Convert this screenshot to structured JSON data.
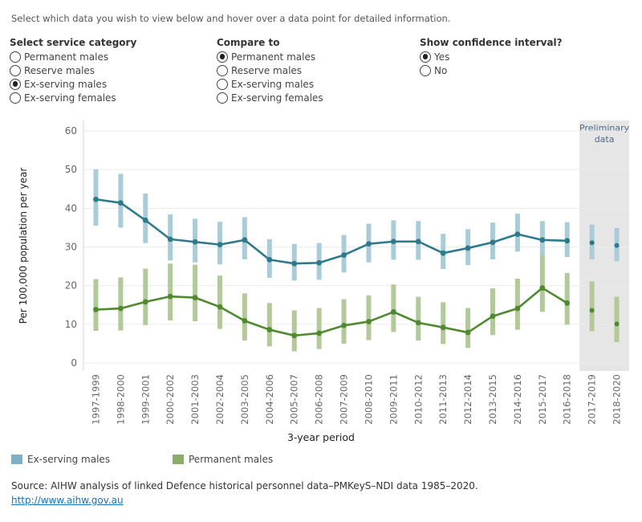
{
  "instruction": "Select which data you wish to view below and hover over a data point for detailed information.",
  "controls": {
    "service_category": {
      "title": "Select service category",
      "options": [
        "Permanent males",
        "Reserve males",
        "Ex-serving males",
        "Ex-serving females"
      ],
      "selected": "Ex-serving males"
    },
    "compare_to": {
      "title": "Compare to",
      "options": [
        "Permanent males",
        "Reserve males",
        "Ex-serving males",
        "Ex-serving females"
      ],
      "selected": "Permanent males"
    },
    "confidence_interval": {
      "title": "Show confidence interval?",
      "options": [
        "Yes",
        "No"
      ],
      "selected": "Yes"
    }
  },
  "chart_data": {
    "type": "line",
    "xlabel": "3-year period",
    "ylabel": "Per 100,000 population per year",
    "ylim": [
      0,
      60
    ],
    "yticks": [
      0,
      10,
      20,
      30,
      40,
      50,
      60
    ],
    "grid": true,
    "categories": [
      "1997-1999",
      "1998-2000",
      "1999-2001",
      "2000-2002",
      "2001-2003",
      "2002-2004",
      "2003-2005",
      "2004-2006",
      "2005-2007",
      "2006-2008",
      "2007-2009",
      "2008-2010",
      "2009-2011",
      "2010-2012",
      "2011-2013",
      "2012-2014",
      "2013-2015",
      "2014-2016",
      "2015-2017",
      "2016-2018",
      "2017-2019",
      "2018-2020"
    ],
    "preliminary": {
      "label_line1": "Preliminary",
      "label_line2": "data",
      "categories": [
        "2017-2019",
        "2018-2020"
      ]
    },
    "series": [
      {
        "name": "Ex-serving males",
        "line_color": "#2e7a8c",
        "ci_color": "#a9cdd8",
        "values": [
          42.3,
          41.4,
          36.9,
          32.0,
          31.3,
          30.6,
          31.8,
          26.7,
          25.7,
          25.9,
          27.9,
          30.8,
          31.4,
          31.4,
          28.4,
          29.7,
          31.2,
          33.3,
          31.8,
          31.6,
          31.1,
          30.4
        ],
        "ci_low": [
          35.5,
          35.0,
          31.0,
          26.5,
          26.0,
          25.5,
          26.8,
          22.0,
          21.3,
          21.5,
          23.4,
          26.0,
          26.7,
          26.7,
          24.3,
          25.3,
          26.8,
          28.8,
          27.4,
          27.4,
          26.8,
          26.3
        ],
        "ci_high": [
          50.1,
          48.9,
          43.8,
          38.4,
          37.3,
          36.5,
          37.7,
          32.0,
          30.8,
          31.0,
          33.1,
          36.0,
          36.9,
          36.7,
          33.4,
          34.6,
          36.3,
          38.6,
          36.7,
          36.4,
          35.8,
          34.9
        ]
      },
      {
        "name": "Permanent males",
        "line_color": "#4f8a2f",
        "ci_color": "#b3c99a",
        "values": [
          13.8,
          14.1,
          15.8,
          17.2,
          16.9,
          14.5,
          10.9,
          8.6,
          7.1,
          7.7,
          9.7,
          10.7,
          13.2,
          10.4,
          9.2,
          7.9,
          12.1,
          14.1,
          19.4,
          15.5,
          13.6,
          10.1
        ],
        "ci_low": [
          8.3,
          8.4,
          9.8,
          11.0,
          10.8,
          8.8,
          5.8,
          4.3,
          3.0,
          3.6,
          5.0,
          5.9,
          8.0,
          5.8,
          4.9,
          3.9,
          7.2,
          8.6,
          13.2,
          9.9,
          8.2,
          5.4
        ],
        "ci_high": [
          21.7,
          22.1,
          24.4,
          25.7,
          25.4,
          22.6,
          18.0,
          15.5,
          13.6,
          14.2,
          16.5,
          17.5,
          20.3,
          17.1,
          15.7,
          14.2,
          19.3,
          21.8,
          27.9,
          23.3,
          21.1,
          17.1
        ]
      }
    ]
  },
  "legend": {
    "items": [
      {
        "label": "Ex-serving males",
        "color": "#7fb0c4"
      },
      {
        "label": "Permanent males",
        "color": "#8aad6a"
      }
    ]
  },
  "source": "Source: AIHW analysis of linked Defence historical personnel data–PMKeyS–NDI data 1985–2020.",
  "link": "http://www.aihw.gov.au"
}
